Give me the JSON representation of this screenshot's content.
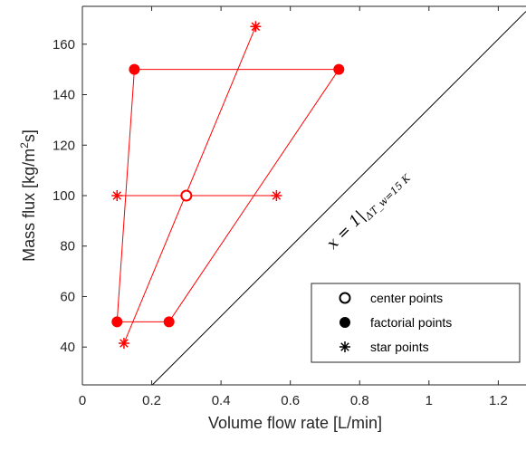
{
  "chart_data": {
    "type": "scatter",
    "xlabel": "Volume flow rate [L/min]",
    "ylabel_main": "Mass flux [kg/m",
    "ylabel_sup": "2",
    "ylabel_tail": "s]",
    "xlim": [
      0,
      1.28
    ],
    "ylim": [
      25,
      175
    ],
    "x_ticks": [
      0,
      0.2,
      0.4,
      0.6,
      0.8,
      1,
      1.2
    ],
    "x_tick_labels": [
      "0",
      "0.2",
      "0.4",
      "0.6",
      "0.8",
      "1",
      "1.2"
    ],
    "y_ticks": [
      40,
      60,
      80,
      100,
      120,
      140,
      160
    ],
    "y_tick_labels": [
      "40",
      "60",
      "80",
      "100",
      "120",
      "140",
      "160"
    ],
    "grid": false,
    "legend_position": "bottom-right",
    "colors": {
      "design": "#ff0000",
      "boundary": "#000000",
      "axes": "#262626"
    },
    "series": [
      {
        "name": "center points",
        "marker": "open-circle",
        "points": [
          [
            0.3,
            100
          ]
        ]
      },
      {
        "name": "factorial points",
        "marker": "filled-circle",
        "points": [
          [
            0.1,
            50
          ],
          [
            0.25,
            50
          ],
          [
            0.15,
            150
          ],
          [
            0.74,
            150
          ]
        ]
      },
      {
        "name": "star points",
        "marker": "asterisk",
        "points": [
          [
            0.1,
            100
          ],
          [
            0.56,
            100
          ],
          [
            0.12,
            41.5
          ],
          [
            0.5,
            167
          ]
        ]
      }
    ],
    "connecting_lines": [
      [
        [
          0.1,
          50
        ],
        [
          0.25,
          50
        ]
      ],
      [
        [
          0.1,
          50
        ],
        [
          0.15,
          150
        ]
      ],
      [
        [
          0.15,
          150
        ],
        [
          0.74,
          150
        ]
      ],
      [
        [
          0.25,
          50
        ],
        [
          0.74,
          150
        ]
      ],
      [
        [
          0.1,
          100
        ],
        [
          0.56,
          100
        ]
      ],
      [
        [
          0.12,
          41.5
        ],
        [
          0.5,
          167
        ]
      ]
    ],
    "boundary_line": [
      [
        0.18,
        22
      ],
      [
        1.28,
        173
      ]
    ],
    "annotation": {
      "main": "x = 1|",
      "subscript": "ΔT_w=15 K"
    }
  }
}
